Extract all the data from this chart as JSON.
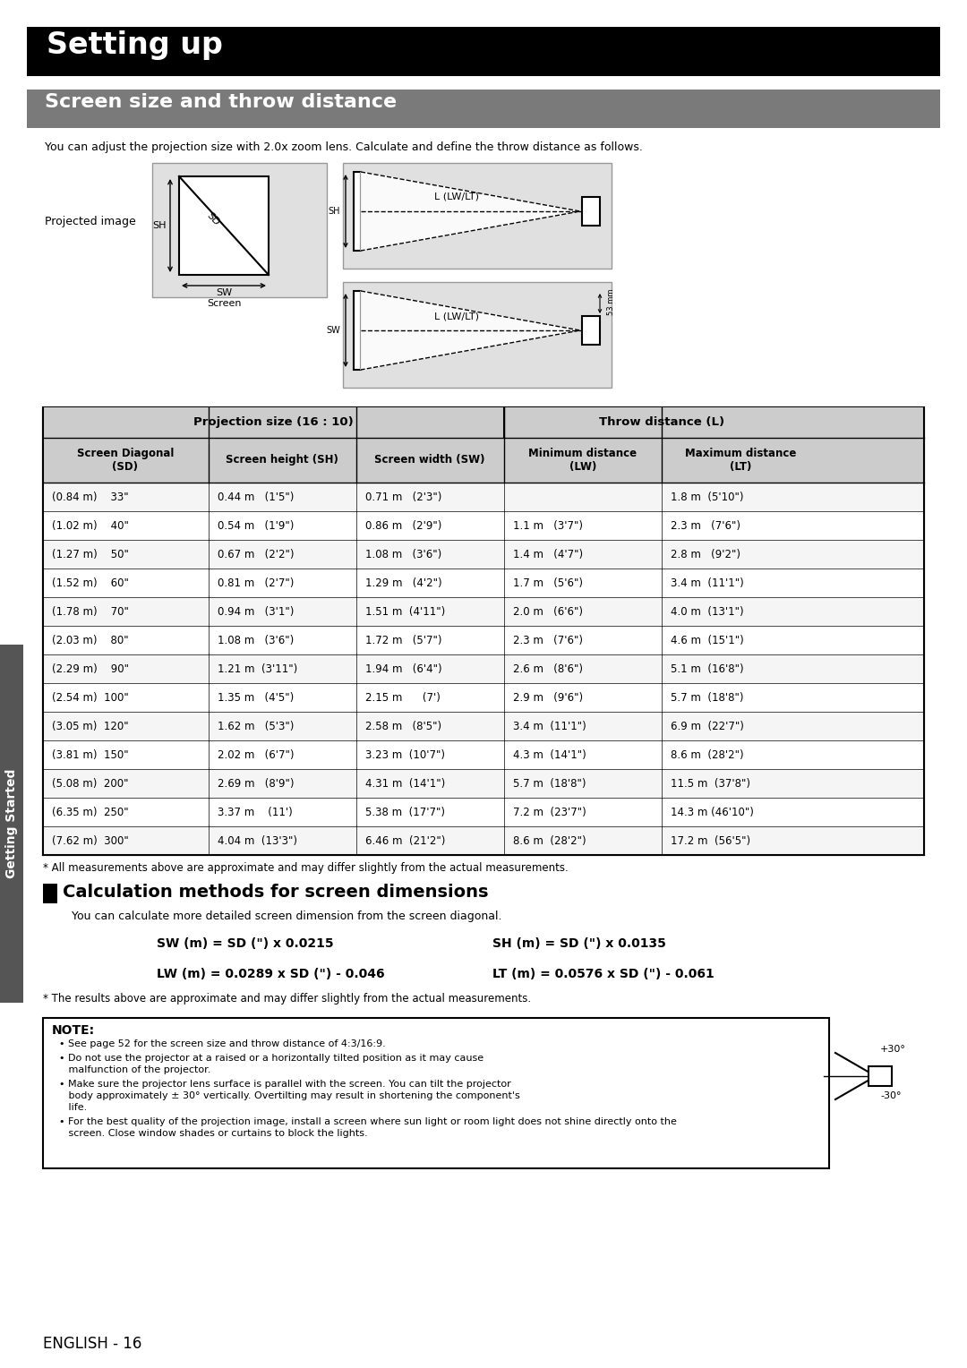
{
  "title_setting_up": "Setting up",
  "title_screen_size": "Screen size and throw distance",
  "subtitle": "You can adjust the projection size with 2.0x zoom lens. Calculate and define the throw distance as follows.",
  "table_header_proj": "Projection size (16 : 10)",
  "table_header_throw": "Throw distance (L)",
  "col1_header": "Screen Diagonal\n(SD)",
  "col2_header": "Screen height (SH)",
  "col3_header": "Screen width (SW)",
  "col4_header": "Minimum distance\n(LW)",
  "col5_header": "Maximum distance\n(LT)",
  "table_data": [
    [
      "(0.84 m)    33\"",
      "0.44 m   (1'5\")",
      "0.71 m   (2'3\")",
      "",
      "1.8 m  (5'10\")"
    ],
    [
      "(1.02 m)    40\"",
      "0.54 m   (1'9\")",
      "0.86 m   (2'9\")",
      "1.1 m   (3'7\")",
      "2.3 m   (7'6\")"
    ],
    [
      "(1.27 m)    50\"",
      "0.67 m   (2'2\")",
      "1.08 m   (3'6\")",
      "1.4 m   (4'7\")",
      "2.8 m   (9'2\")"
    ],
    [
      "(1.52 m)    60\"",
      "0.81 m   (2'7\")",
      "1.29 m   (4'2\")",
      "1.7 m   (5'6\")",
      "3.4 m  (11'1\")"
    ],
    [
      "(1.78 m)    70\"",
      "0.94 m   (3'1\")",
      "1.51 m  (4'11\")",
      "2.0 m   (6'6\")",
      "4.0 m  (13'1\")"
    ],
    [
      "(2.03 m)    80\"",
      "1.08 m   (3'6\")",
      "1.72 m   (5'7\")",
      "2.3 m   (7'6\")",
      "4.6 m  (15'1\")"
    ],
    [
      "(2.29 m)    90\"",
      "1.21 m  (3'11\")",
      "1.94 m   (6'4\")",
      "2.6 m   (8'6\")",
      "5.1 m  (16'8\")"
    ],
    [
      "(2.54 m)  100\"",
      "1.35 m   (4'5\")",
      "2.15 m      (7')",
      "2.9 m   (9'6\")",
      "5.7 m  (18'8\")"
    ],
    [
      "(3.05 m)  120\"",
      "1.62 m   (5'3\")",
      "2.58 m   (8'5\")",
      "3.4 m  (11'1\")",
      "6.9 m  (22'7\")"
    ],
    [
      "(3.81 m)  150\"",
      "2.02 m   (6'7\")",
      "3.23 m  (10'7\")",
      "4.3 m  (14'1\")",
      "8.6 m  (28'2\")"
    ],
    [
      "(5.08 m)  200\"",
      "2.69 m   (8'9\")",
      "4.31 m  (14'1\")",
      "5.7 m  (18'8\")",
      "11.5 m  (37'8\")"
    ],
    [
      "(6.35 m)  250\"",
      "3.37 m    (11')",
      "5.38 m  (17'7\")",
      "7.2 m  (23'7\")",
      "14.3 m (46'10\")"
    ],
    [
      "(7.62 m)  300\"",
      "4.04 m  (13'3\")",
      "6.46 m  (21'2\")",
      "8.6 m  (28'2\")",
      "17.2 m  (56'5\")"
    ]
  ],
  "footnote_table": "* All measurements above are approximate and may differ slightly from the actual measurements.",
  "calc_title": "Calculation methods for screen dimensions",
  "calc_subtitle": "You can calculate more detailed screen dimension from the screen diagonal.",
  "sw_formula": "SW (m) = SD (\") x 0.0215",
  "sh_formula": "SH (m) = SD (\") x 0.0135",
  "lw_formula": "LW (m) = 0.0289 x SD (\") - 0.046",
  "lt_formula": "LT (m) = 0.0576 x SD (\") - 0.061",
  "footnote_calc": "* The results above are approximate and may differ slightly from the actual measurements.",
  "note_title": "NOTE:",
  "note_bullets": [
    "See page 52 for the screen size and throw distance of 4:3/16:9.",
    "Do not use the projector at a raised or a horizontally tilted position as it may cause\nmalfunction of the projector.",
    "Make sure the projector lens surface is parallel with the screen. You can tilt the projector\nbody approximately ± 30° vertically. Overtilting may result in shortening the component's\nlife.",
    "For the best quality of the projection image, install a screen where sun light or room light does not shine directly onto the\nscreen. Close window shades or curtains to block the lights."
  ],
  "page_label": "ENGLISH - 16",
  "sidebar_label": "Getting Started",
  "bg_color": "#ffffff",
  "header_black": "#000000",
  "header_gray": "#7a7a7a",
  "table_header_bg": "#cccccc",
  "sidebar_bg": "#555555"
}
